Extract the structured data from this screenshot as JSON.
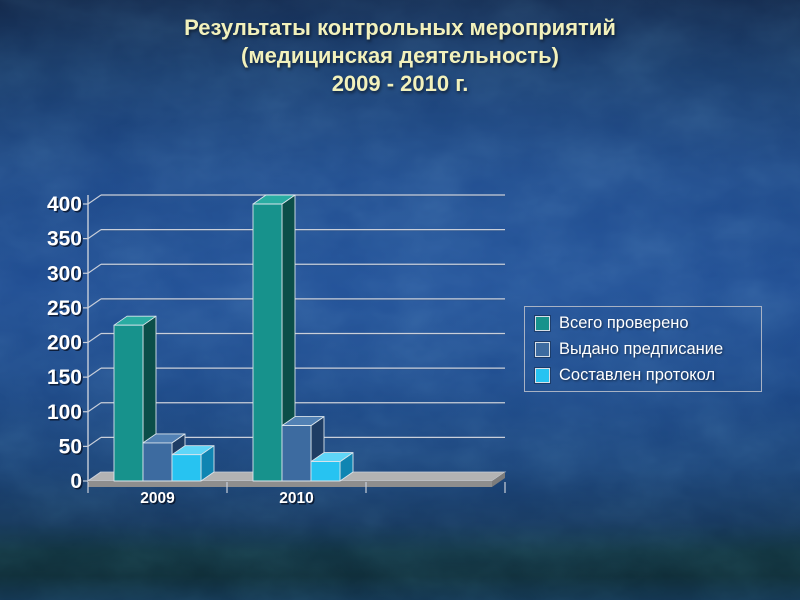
{
  "slide": {
    "title_lines": [
      "Результаты контрольных мероприятий",
      "(медицинская деятельность)",
      "2009 - 2010 г."
    ],
    "title_color": "#F2F1BC",
    "background_base": "#1D4687"
  },
  "chart_data": {
    "type": "bar",
    "projection": "3d-column",
    "title": "",
    "xlabel": "",
    "ylabel": "",
    "categories": [
      "2009",
      "2010"
    ],
    "series": [
      {
        "name": "Всего проверено",
        "values": [
          225,
          400
        ],
        "colors": {
          "front": "#17928C",
          "side": "#0B4E49",
          "top": "#2AACA2"
        }
      },
      {
        "name": "Выдано предписание",
        "values": [
          55,
          80
        ],
        "colors": {
          "front": "#3D6BA0",
          "side": "#1F3D64",
          "top": "#5281B4"
        }
      },
      {
        "name": "Составлен протокол",
        "values": [
          38,
          28
        ],
        "colors": {
          "front": "#27C3F1",
          "side": "#0F85B2",
          "top": "#5FD6F8"
        }
      }
    ],
    "ylim": [
      0,
      400
    ],
    "ytick_step": 50,
    "grid": true,
    "legend_position": "right",
    "axis_slots": 3,
    "style": {
      "grid_color": "#C9CFDA",
      "grid_shadow": "#30507E",
      "axis_color": "#C9CFDA",
      "tick_label_color": "#FFFFFF",
      "tick_shadow_color": "rgba(8,18,38,0.8)",
      "floor_top": "#B3B3B3",
      "floor_front": "#8E8E8E",
      "floor_side": "#7C7C7C",
      "bar_outline": "#D9E4EC"
    }
  },
  "legend": {
    "border_color": "#A8B2C4"
  }
}
